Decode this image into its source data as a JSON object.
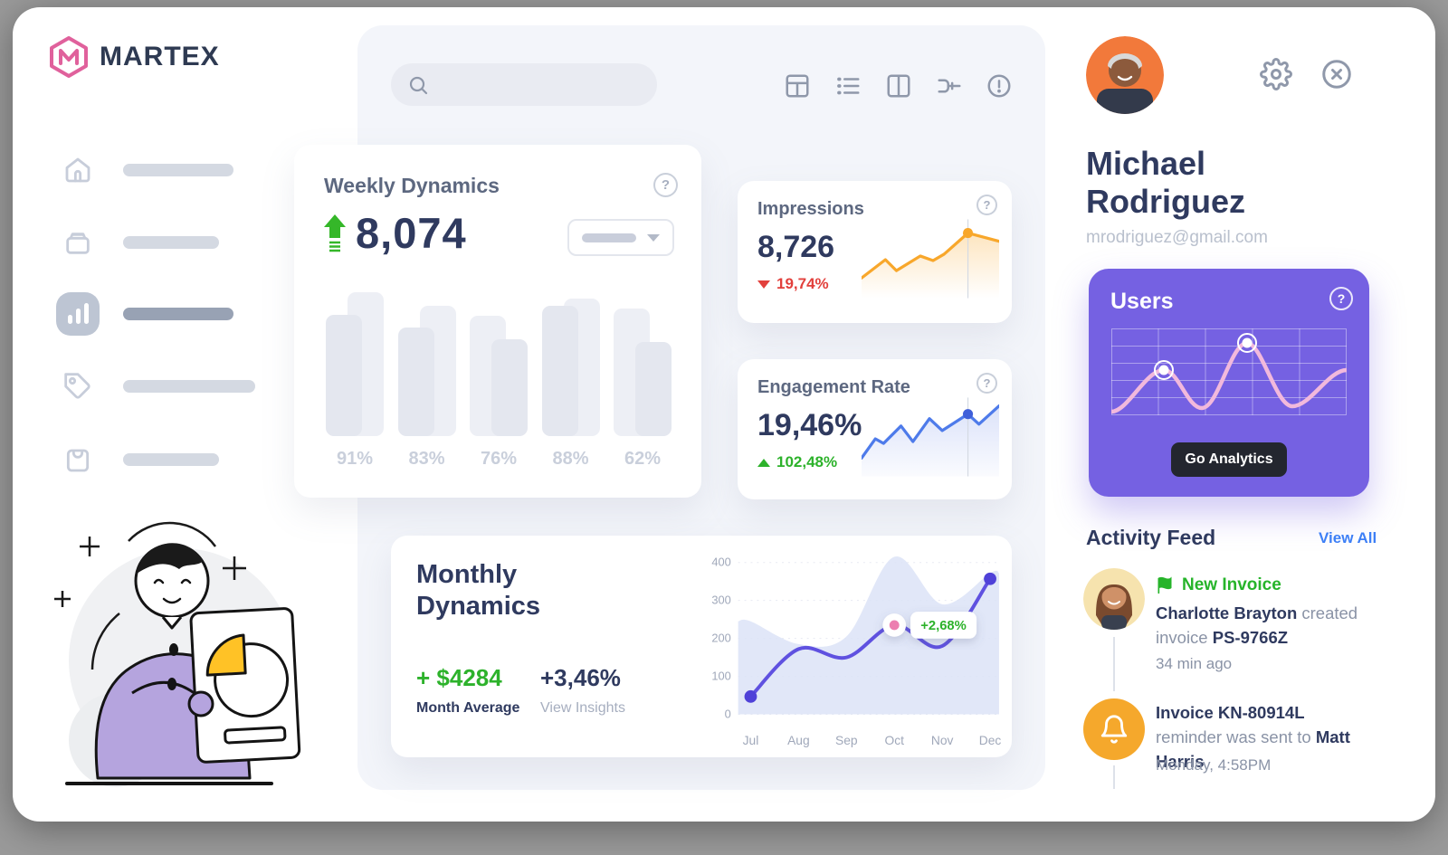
{
  "brand": {
    "name": "MARTEX"
  },
  "colors": {
    "navy": "#2f3a5f",
    "green": "#2db22b",
    "red": "#e2403c",
    "orange": "#f8a72b",
    "line_purple": "#5f51e0",
    "card_purple": "#7561e2",
    "pink": "#ec7fb0",
    "link_blue": "#3d7ff6"
  },
  "sidebar": {
    "items": [
      {
        "icon": "home-icon",
        "active": false
      },
      {
        "icon": "archive-box-icon",
        "active": false
      },
      {
        "icon": "bar-chart-icon",
        "active": true
      },
      {
        "icon": "tag-icon",
        "active": false
      },
      {
        "icon": "shopping-bag-icon",
        "active": false
      }
    ]
  },
  "topbar": {
    "icons": [
      "grid-view-icon",
      "list-view-icon",
      "split-view-icon",
      "flow-merge-icon",
      "alert-circle-icon"
    ]
  },
  "weekly": {
    "title": "Weekly Dynamics",
    "value": "8,074",
    "trend": "up"
  },
  "impressions": {
    "title": "Impressions",
    "value": "8,726",
    "delta": "19,74%",
    "direction": "down",
    "spark_points": [
      [
        0,
        66
      ],
      [
        26,
        46
      ],
      [
        38,
        58
      ],
      [
        64,
        42
      ],
      [
        78,
        47
      ],
      [
        90,
        40
      ],
      [
        116,
        17
      ],
      [
        150,
        26
      ]
    ],
    "marker_index": 6
  },
  "engagement": {
    "title": "Engagement Rate",
    "value": "19,46%",
    "delta": "102,48%",
    "direction": "up",
    "spark_points": [
      [
        0,
        68
      ],
      [
        15,
        47
      ],
      [
        24,
        52
      ],
      [
        43,
        33
      ],
      [
        56,
        50
      ],
      [
        74,
        25
      ],
      [
        88,
        38
      ],
      [
        116,
        20
      ],
      [
        128,
        31
      ],
      [
        150,
        11
      ]
    ],
    "marker_index": 7
  },
  "monthly": {
    "title": "Monthly Dynamics",
    "average_value": "+ $4284",
    "average_label": "Month Average",
    "insight_value": "+3,46%",
    "insight_label": "View Insights"
  },
  "chart_data": [
    {
      "type": "bar",
      "title": "Weekly Dynamics",
      "categories": [
        "91%",
        "83%",
        "76%",
        "88%",
        "62%"
      ],
      "series": [
        {
          "name": "back",
          "values": [
            98,
            89,
            82,
            94,
            87
          ],
          "sides": [
            "right",
            "right",
            "left",
            "right",
            "left"
          ]
        },
        {
          "name": "front",
          "values": [
            83,
            74,
            66,
            89,
            64
          ],
          "sides": [
            "left",
            "left",
            "right",
            "left",
            "right"
          ]
        }
      ],
      "ylim": [
        0,
        100
      ]
    },
    {
      "type": "line",
      "title": "Monthly Dynamics",
      "x": [
        "Jul",
        "Aug",
        "Sep",
        "Oct",
        "Nov",
        "Dec"
      ],
      "yticks": [
        0,
        100,
        200,
        300,
        400
      ],
      "ylim": [
        0,
        400
      ],
      "series": [
        {
          "name": "current",
          "values": [
            47,
            172,
            150,
            235,
            180,
            357
          ]
        },
        {
          "name": "background-area",
          "values": [
            245,
            185,
            205,
            415,
            290,
            372
          ]
        }
      ],
      "annotation": {
        "x_index": 3,
        "label": "+2,68%"
      },
      "legend": "none",
      "grid": "horizontal-dotted"
    }
  ],
  "users_card": {
    "title": "Users",
    "button_label": "Go Analytics"
  },
  "profile": {
    "name": "Michael Rodriguez",
    "email": "mrodriguez@gmail.com"
  },
  "activity": {
    "title": "Activity Feed",
    "view_all": "View All",
    "items": [
      {
        "badge": "New Invoice",
        "badge_icon": "flag-icon",
        "bold1": "Charlotte Brayton",
        "mid": " created invoice ",
        "bold2": "PS-9766Z",
        "time": "34  min ago",
        "avatar": "charlotte-avatar"
      },
      {
        "badge": "",
        "badge_icon": "bell-icon",
        "bold1": "Invoice KN-80914L",
        "mid": " reminder was sent to ",
        "bold2": "Matt Harris",
        "time": "Monday, 4:58PM",
        "avatar": "bell-icon"
      }
    ]
  }
}
